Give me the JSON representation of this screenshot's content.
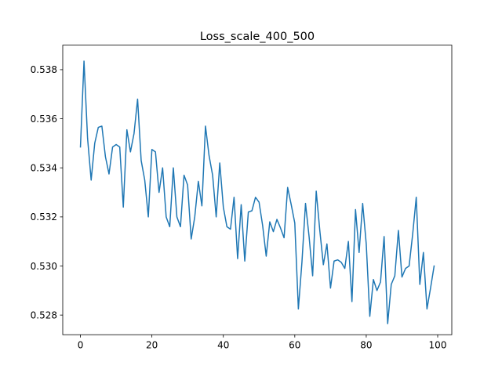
{
  "chart_data": {
    "type": "line",
    "title": "Loss_scale_400_500",
    "xlabel": "",
    "ylabel": "",
    "xlim": [
      -4.95,
      103.95
    ],
    "ylim": [
      0.5272,
      0.539
    ],
    "xticks": [
      0,
      20,
      40,
      60,
      80,
      100
    ],
    "xtick_labels": [
      "0",
      "20",
      "40",
      "60",
      "80",
      "100"
    ],
    "yticks": [
      0.528,
      0.53,
      0.532,
      0.534,
      0.536,
      0.538
    ],
    "ytick_labels": [
      "0.528",
      "0.530",
      "0.532",
      "0.534",
      "0.536",
      "0.538"
    ],
    "grid": false,
    "series": [
      {
        "color": "#1f77b4",
        "x": [
          0,
          1,
          2,
          3,
          4,
          5,
          6,
          7,
          8,
          9,
          10,
          11,
          12,
          13,
          14,
          15,
          16,
          17,
          18,
          19,
          20,
          21,
          22,
          23,
          24,
          25,
          26,
          27,
          28,
          29,
          30,
          31,
          32,
          33,
          34,
          35,
          36,
          37,
          38,
          39,
          40,
          41,
          42,
          43,
          44,
          45,
          46,
          47,
          48,
          49,
          50,
          51,
          52,
          53,
          54,
          55,
          56,
          57,
          58,
          59,
          60,
          61,
          62,
          63,
          64,
          65,
          66,
          67,
          68,
          69,
          70,
          71,
          72,
          73,
          74,
          75,
          76,
          77,
          78,
          79,
          80,
          81,
          82,
          83,
          84,
          85,
          86,
          87,
          88,
          89,
          90,
          91,
          92,
          93,
          94,
          95,
          96,
          97,
          98,
          99
        ],
        "values": [
          0.53485,
          0.53835,
          0.5352,
          0.5335,
          0.535,
          0.53565,
          0.5357,
          0.53445,
          0.53375,
          0.53485,
          0.53495,
          0.53485,
          0.5324,
          0.53555,
          0.53465,
          0.5354,
          0.5368,
          0.5343,
          0.5335,
          0.532,
          0.53475,
          0.53465,
          0.533,
          0.534,
          0.532,
          0.5316,
          0.534,
          0.532,
          0.5316,
          0.5337,
          0.5333,
          0.5311,
          0.532,
          0.53345,
          0.53245,
          0.5357,
          0.5345,
          0.5337,
          0.532,
          0.5342,
          0.5324,
          0.5316,
          0.5315,
          0.5328,
          0.5303,
          0.5325,
          0.5302,
          0.5322,
          0.53225,
          0.5328,
          0.5326,
          0.53165,
          0.5304,
          0.5318,
          0.5314,
          0.5319,
          0.53155,
          0.53115,
          0.5332,
          0.5325,
          0.53175,
          0.52825,
          0.53015,
          0.53255,
          0.5312,
          0.5296,
          0.53305,
          0.53145,
          0.53005,
          0.5309,
          0.5291,
          0.5302,
          0.53025,
          0.53015,
          0.5299,
          0.531,
          0.52855,
          0.5323,
          0.53055,
          0.53255,
          0.5309,
          0.52795,
          0.52945,
          0.529,
          0.52935,
          0.5312,
          0.52765,
          0.52925,
          0.5296,
          0.53145,
          0.52955,
          0.5299,
          0.53,
          0.5313,
          0.5328,
          0.52925,
          0.53055,
          0.52825,
          0.5291,
          0.53
        ]
      }
    ]
  }
}
